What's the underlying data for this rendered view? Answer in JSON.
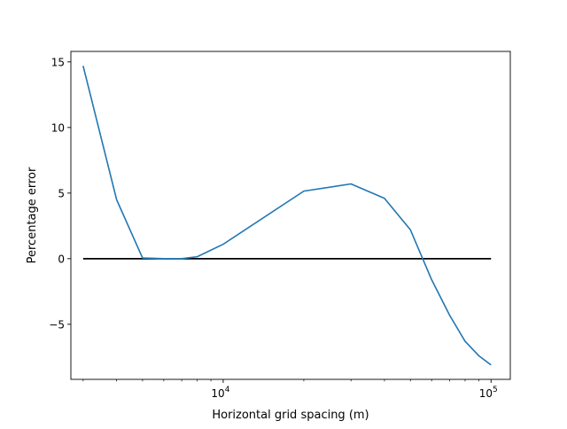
{
  "chart_data": {
    "type": "line",
    "title": "",
    "xlabel": "Horizontal grid spacing (m)",
    "ylabel": "Percentage error",
    "xscale": "log",
    "xlim": [
      2700,
      118000
    ],
    "ylim": [
      -9.2,
      15.8
    ],
    "grid": false,
    "legend": "none",
    "x_ticks": [
      {
        "value": 10000,
        "base": "10",
        "exp": "4"
      },
      {
        "value": 100000,
        "base": "10",
        "exp": "5"
      }
    ],
    "y_ticks": [
      {
        "value": 15,
        "label": "15"
      },
      {
        "value": 10,
        "label": "10"
      },
      {
        "value": 5,
        "label": "5"
      },
      {
        "value": 0,
        "label": "0"
      },
      {
        "value": -5,
        "label": "−5"
      }
    ],
    "series": [
      {
        "color": "#1f77b4",
        "x": [
          3000,
          4000,
          5000,
          6000,
          7000,
          8000,
          10000,
          20000,
          30000,
          40000,
          50000,
          60000,
          70000,
          80000,
          90000,
          100000
        ],
        "y": [
          14.7,
          4.5,
          0.05,
          0.0,
          0.0,
          0.15,
          1.1,
          5.15,
          5.7,
          4.6,
          2.2,
          -1.6,
          -4.3,
          -6.3,
          -7.4,
          -8.1
        ]
      },
      {
        "color": "#000000",
        "x": [
          3000,
          100000
        ],
        "y": [
          0,
          0
        ]
      }
    ]
  }
}
